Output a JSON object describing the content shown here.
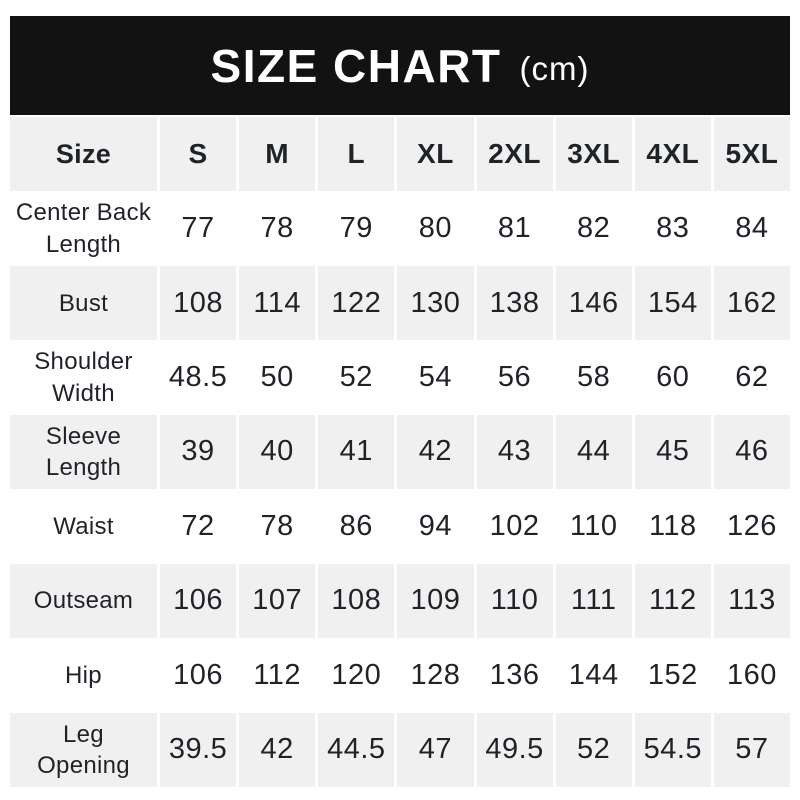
{
  "chart_data": {
    "type": "table",
    "title": "SIZE CHART",
    "unit_label": "(cm)",
    "corner_label": "Size",
    "columns": [
      "S",
      "M",
      "L",
      "XL",
      "2XL",
      "3XL",
      "4XL",
      "5XL"
    ],
    "rows": [
      {
        "label": "Center Back\nLength",
        "values": [
          "77",
          "78",
          "79",
          "80",
          "81",
          "82",
          "83",
          "84"
        ]
      },
      {
        "label": "Bust",
        "values": [
          "108",
          "114",
          "122",
          "130",
          "138",
          "146",
          "154",
          "162"
        ]
      },
      {
        "label": "Shoulder\nWidth",
        "values": [
          "48.5",
          "50",
          "52",
          "54",
          "56",
          "58",
          "60",
          "62"
        ]
      },
      {
        "label": "Sleeve\nLength",
        "values": [
          "39",
          "40",
          "41",
          "42",
          "43",
          "44",
          "45",
          "46"
        ]
      },
      {
        "label": "Waist",
        "values": [
          "72",
          "78",
          "86",
          "94",
          "102",
          "110",
          "118",
          "126"
        ]
      },
      {
        "label": "Outseam",
        "values": [
          "106",
          "107",
          "108",
          "109",
          "110",
          "111",
          "112",
          "113"
        ]
      },
      {
        "label": "Hip",
        "values": [
          "106",
          "112",
          "120",
          "128",
          "136",
          "144",
          "152",
          "160"
        ]
      },
      {
        "label": "Leg\nOpening",
        "values": [
          "39.5",
          "42",
          "44.5",
          "47",
          "49.5",
          "52",
          "54.5",
          "57"
        ]
      }
    ],
    "layout": {
      "banner_bg": "#121212",
      "banner_text_color": "#ffffff",
      "shaded_row_bg": "#f0f0f0",
      "body_text_color": "#1f2328",
      "shaded_rows": [
        "header",
        "Bust",
        "Sleeve Length",
        "Outseam",
        "Leg Opening"
      ]
    }
  }
}
